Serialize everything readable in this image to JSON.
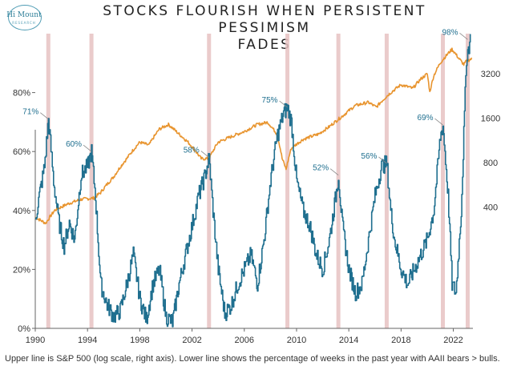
{
  "logo": {
    "name": "Hi Mount",
    "sub": "RESEARCH"
  },
  "title_line1": "STOCKS FLOURISH WHEN PERSISTENT PESSIMISM",
  "title_line2": "FADES",
  "footnote": "Upper line is S&P 500 (log scale, right axis). Lower line shows the percentage of weeks in the past year with AAII bears > bulls.",
  "colors": {
    "sp500": "#e8942e",
    "bears": "#1f6f8f",
    "bands": "#e6c2c2",
    "axis": "#666666"
  },
  "chart_data": {
    "type": "line",
    "title": "STOCKS FLOURISH WHEN PERSISTENT PESSIMISM FADES",
    "x_range": [
      1990,
      2023.5
    ],
    "x_ticks": [
      1990,
      1994,
      1998,
      2002,
      2006,
      2010,
      2014,
      2018,
      2022
    ],
    "left_axis": {
      "range": [
        0,
        100
      ],
      "ticks": [
        0,
        20,
        40,
        60,
        80
      ],
      "tick_labels": [
        "0%",
        "20%",
        "40%",
        "60%",
        "80%"
      ]
    },
    "right_axis": {
      "scale": "log",
      "range": [
        60,
        6000
      ],
      "ticks": [
        400,
        800,
        1600,
        3200
      ],
      "tick_labels": [
        "400",
        "800",
        "1600",
        "3200"
      ]
    },
    "highlight_years": [
      1991.0,
      1994.3,
      2003.3,
      2009.3,
      2013.2,
      2016.9,
      2021.2,
      2023.1
    ],
    "series": [
      {
        "name": "S&P 500",
        "axis": "right",
        "x": [
          1990.0,
          1990.8,
          1991.5,
          1992.5,
          1993.5,
          1994.5,
          1995.0,
          1996.0,
          1997.0,
          1998.0,
          1998.7,
          1999.5,
          2000.2,
          2001.0,
          2001.7,
          2002.7,
          2003.3,
          2004.0,
          2005.0,
          2006.0,
          2007.0,
          2007.8,
          2008.5,
          2008.9,
          2009.2,
          2009.6,
          2010.5,
          2011.7,
          2012.5,
          2013.5,
          2014.5,
          2015.5,
          2016.1,
          2017.0,
          2018.0,
          2018.9,
          2019.5,
          2020.0,
          2020.2,
          2020.5,
          2021.0,
          2021.9,
          2022.4,
          2022.8,
          2023.0,
          2023.4
        ],
        "values": [
          340,
          310,
          380,
          420,
          450,
          460,
          500,
          640,
          850,
          1100,
          1050,
          1350,
          1450,
          1250,
          1100,
          850,
          850,
          1100,
          1200,
          1300,
          1450,
          1500,
          1250,
          850,
          720,
          1000,
          1150,
          1250,
          1400,
          1650,
          1950,
          2050,
          1900,
          2300,
          2700,
          2550,
          2950,
          3200,
          2400,
          3100,
          3800,
          4700,
          4100,
          3700,
          3900,
          4050
        ]
      },
      {
        "name": "% of weeks in past year with AAII bears > bulls",
        "axis": "left",
        "x": [
          1990.0,
          1990.3,
          1990.7,
          1991.0,
          1991.4,
          1991.8,
          1992.2,
          1992.6,
          1993.0,
          1993.5,
          1994.0,
          1994.3,
          1994.6,
          1995.0,
          1995.5,
          1996.0,
          1996.5,
          1997.0,
          1997.5,
          1998.0,
          1998.5,
          1999.0,
          1999.5,
          2000.0,
          2000.5,
          2001.0,
          2001.5,
          2002.0,
          2002.5,
          2003.0,
          2003.3,
          2003.6,
          2004.0,
          2004.5,
          2005.0,
          2005.5,
          2006.0,
          2006.5,
          2007.0,
          2007.5,
          2008.0,
          2008.5,
          2009.0,
          2009.3,
          2009.6,
          2010.0,
          2010.5,
          2011.0,
          2011.5,
          2012.0,
          2012.5,
          2013.0,
          2013.2,
          2013.5,
          2014.0,
          2014.5,
          2015.0,
          2015.5,
          2016.0,
          2016.5,
          2016.9,
          2017.2,
          2017.5,
          2018.0,
          2018.5,
          2019.0,
          2019.5,
          2020.0,
          2020.5,
          2021.0,
          2021.2,
          2021.6,
          2021.9,
          2022.2,
          2022.6,
          2023.0,
          2023.3
        ],
        "values": [
          37,
          45,
          55,
          71,
          50,
          36,
          28,
          36,
          30,
          52,
          55,
          60,
          45,
          15,
          8,
          4,
          6,
          15,
          25,
          10,
          3,
          15,
          20,
          4,
          2,
          15,
          25,
          35,
          45,
          52,
          58,
          40,
          20,
          5,
          8,
          15,
          20,
          25,
          15,
          30,
          50,
          65,
          73,
          75,
          70,
          50,
          40,
          35,
          25,
          20,
          30,
          45,
          52,
          35,
          20,
          12,
          15,
          30,
          45,
          55,
          56,
          40,
          30,
          20,
          15,
          20,
          25,
          30,
          40,
          65,
          69,
          45,
          15,
          12,
          40,
          92,
          98
        ]
      }
    ],
    "annotations": [
      {
        "x": 1991.0,
        "y": 71,
        "label": "71%"
      },
      {
        "x": 1994.3,
        "y": 60,
        "label": "60%"
      },
      {
        "x": 2003.3,
        "y": 58,
        "label": "58%"
      },
      {
        "x": 2009.3,
        "y": 75,
        "label": "75%"
      },
      {
        "x": 2013.2,
        "y": 52,
        "label": "52%"
      },
      {
        "x": 2016.9,
        "y": 56,
        "label": "56%"
      },
      {
        "x": 2021.2,
        "y": 69,
        "label": "69%"
      },
      {
        "x": 2023.1,
        "y": 98,
        "label": "98%"
      }
    ]
  }
}
